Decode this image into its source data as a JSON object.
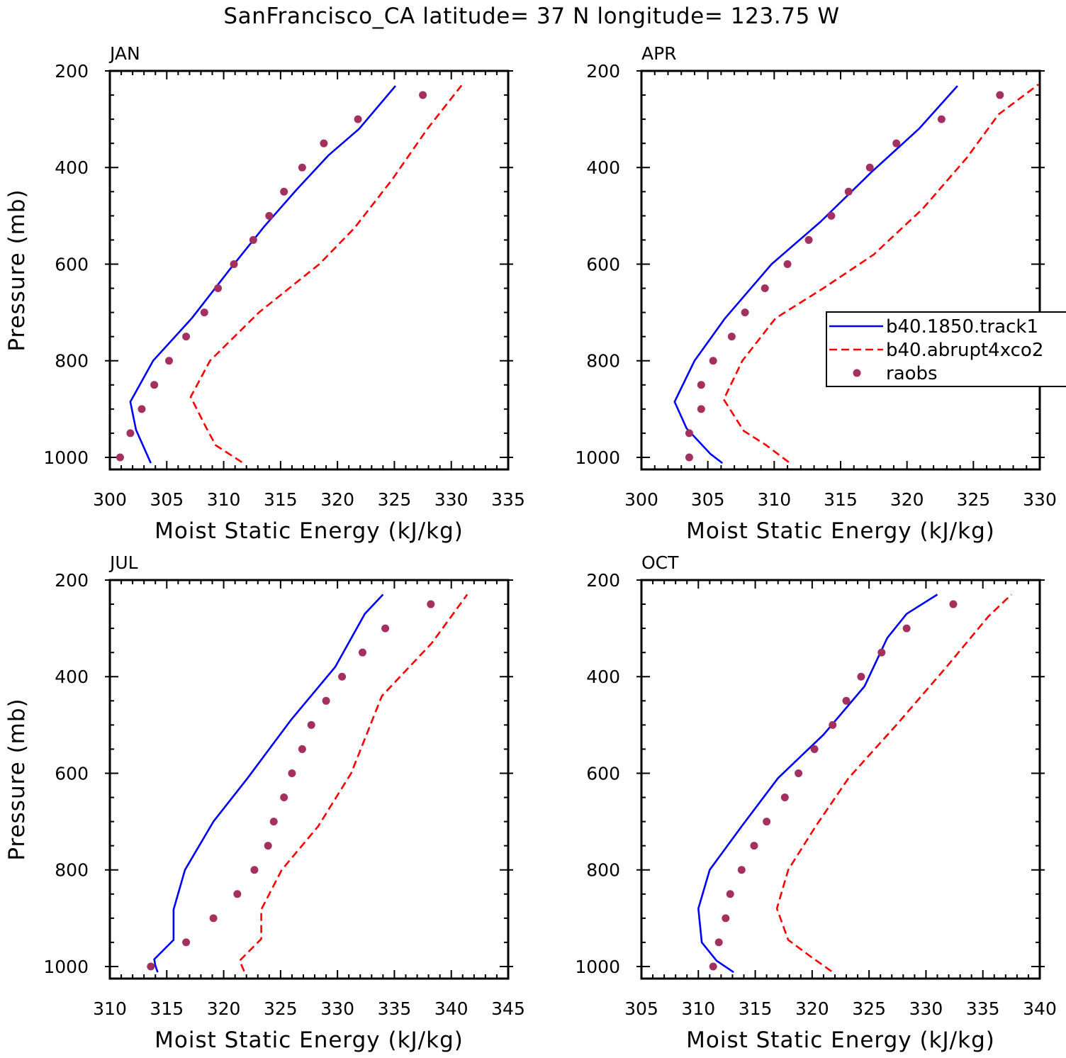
{
  "title": "SanFrancisco_CA  latitude= 37 N longitude= 123.75 W",
  "legend": {
    "placement": "right-middle of APR panel",
    "entries": [
      {
        "label": "b40.1850.track1",
        "style": "solid",
        "color": "#0000ff"
      },
      {
        "label": "b40.abrupt4xco2",
        "style": "dashed",
        "color": "#ff0000"
      },
      {
        "label": "raobs",
        "style": "dot",
        "color": "#a3305f"
      }
    ]
  },
  "colors": {
    "model_control": "#0000ff",
    "model_4xco2": "#ff0000",
    "obs": "#a3305f"
  },
  "chart_data": [
    {
      "type": "line",
      "panel": "JAN",
      "xlabel": "Moist Static Energy (kJ/kg)",
      "ylabel": "Pressure (mb)",
      "xlim": [
        300,
        335
      ],
      "ylim": [
        1025,
        200
      ],
      "xticks": [
        300,
        305,
        310,
        315,
        320,
        325,
        330,
        335
      ],
      "yticks": [
        200,
        400,
        600,
        800,
        1000
      ],
      "series": [
        {
          "name": "b40.1850.track1",
          "style": "solid",
          "x": [
            303.6,
            302.3,
            301.8,
            303.8,
            307.2,
            310.5,
            313.6,
            316.4,
            319.2,
            321.9,
            325.1
          ],
          "y": [
            1012,
            943,
            885,
            800,
            712,
            612,
            521,
            446,
            375,
            320,
            231
          ]
        },
        {
          "name": "b40.abrupt4xco2",
          "style": "dashed",
          "x": [
            311.6,
            309.3,
            308.5,
            307.1,
            308.8,
            313.1,
            318.4,
            321.5,
            324.8,
            327.9,
            330.9
          ],
          "y": [
            1010,
            975,
            940,
            875,
            800,
            700,
            600,
            525,
            425,
            320,
            230
          ]
        },
        {
          "name": "raobs",
          "style": "dot",
          "x": [
            300.9,
            301.8,
            302.8,
            303.9,
            305.2,
            306.7,
            308.3,
            309.5,
            310.9,
            312.6,
            314.0,
            315.3,
            316.9,
            318.8,
            321.8,
            327.5
          ],
          "y": [
            1000,
            950,
            900,
            850,
            800,
            750,
            700,
            650,
            600,
            550,
            500,
            450,
            400,
            350,
            300,
            250
          ]
        }
      ]
    },
    {
      "type": "line",
      "panel": "APR",
      "xlabel": "Moist Static Energy (kJ/kg)",
      "ylabel": "",
      "xlim": [
        300,
        330
      ],
      "ylim": [
        1025,
        200
      ],
      "xticks": [
        300,
        305,
        310,
        315,
        320,
        325,
        330
      ],
      "yticks": [
        200,
        400,
        600,
        800,
        1000
      ],
      "series": [
        {
          "name": "b40.1850.track1",
          "style": "solid",
          "x": [
            306.1,
            305.2,
            303.4,
            302.5,
            304.0,
            306.3,
            309.8,
            313.5,
            317.3,
            320.9,
            323.8
          ],
          "y": [
            1012,
            993,
            940,
            885,
            800,
            712,
            600,
            512,
            410,
            320,
            231
          ]
        },
        {
          "name": "b40.abrupt4xco2",
          "style": "dashed",
          "x": [
            311.1,
            309.4,
            307.7,
            306.2,
            307.6,
            310.1,
            313.7,
            317.5,
            321.2,
            324.5,
            326.9,
            329.9
          ],
          "y": [
            1010,
            975,
            945,
            880,
            800,
            712,
            650,
            580,
            485,
            380,
            290,
            228
          ]
        },
        {
          "name": "raobs",
          "style": "dot",
          "x": [
            303.6,
            303.6,
            304.5,
            304.5,
            305.4,
            306.8,
            307.8,
            309.3,
            311.0,
            312.6,
            314.3,
            315.6,
            317.2,
            319.2,
            322.6,
            327.0
          ],
          "y": [
            1000,
            950,
            900,
            850,
            800,
            750,
            700,
            650,
            600,
            550,
            500,
            450,
            400,
            350,
            300,
            250
          ]
        }
      ]
    },
    {
      "type": "line",
      "panel": "JUL",
      "xlabel": "Moist Static Energy (kJ/kg)",
      "ylabel": "Pressure (mb)",
      "xlim": [
        310,
        345
      ],
      "ylim": [
        1025,
        200
      ],
      "xticks": [
        310,
        315,
        320,
        325,
        330,
        335,
        340,
        345
      ],
      "yticks": [
        200,
        400,
        600,
        800,
        1000
      ],
      "series": [
        {
          "name": "b40.1850.track1",
          "style": "solid",
          "x": [
            314.2,
            314.0,
            313.9,
            315.6,
            315.6,
            316.6,
            319.1,
            322.1,
            325.9,
            329.8,
            332.4,
            334.0
          ],
          "y": [
            1012,
            998,
            985,
            945,
            882,
            800,
            700,
            610,
            490,
            380,
            270,
            230
          ]
        },
        {
          "name": "b40.abrupt4xco2",
          "style": "dashed",
          "x": [
            321.8,
            321.4,
            323.3,
            323.3,
            325.1,
            328.3,
            331.2,
            333.9,
            338.3,
            341.4
          ],
          "y": [
            1010,
            988,
            943,
            882,
            800,
            710,
            600,
            440,
            330,
            230
          ]
        },
        {
          "name": "raobs",
          "style": "dot",
          "x": [
            313.6,
            316.7,
            319.1,
            321.2,
            322.7,
            323.9,
            324.4,
            325.3,
            326.0,
            326.9,
            327.7,
            329.0,
            330.4,
            332.2,
            334.2,
            338.2
          ],
          "y": [
            1000,
            950,
            900,
            850,
            800,
            750,
            700,
            650,
            600,
            550,
            500,
            450,
            400,
            350,
            300,
            250
          ]
        }
      ]
    },
    {
      "type": "line",
      "panel": "OCT",
      "xlabel": "Moist Static Energy (kJ/kg)",
      "ylabel": "",
      "xlim": [
        305,
        340
      ],
      "ylim": [
        1025,
        200
      ],
      "xticks": [
        305,
        310,
        315,
        320,
        325,
        330,
        335,
        340
      ],
      "yticks": [
        200,
        400,
        600,
        800,
        1000
      ],
      "series": [
        {
          "name": "b40.1850.track1",
          "style": "solid",
          "x": [
            313.1,
            311.6,
            310.3,
            310.0,
            311.0,
            313.8,
            317.0,
            321.0,
            324.6,
            326.6,
            328.3,
            331.0
          ],
          "y": [
            1012,
            988,
            950,
            880,
            800,
            710,
            610,
            520,
            420,
            320,
            270,
            230
          ]
        },
        {
          "name": "b40.abrupt4xco2",
          "style": "dashed",
          "x": [
            321.7,
            319.9,
            317.9,
            316.9,
            317.9,
            320.3,
            323.2,
            327.4,
            331.8,
            335.5,
            337.5
          ],
          "y": [
            1010,
            980,
            945,
            880,
            800,
            710,
            610,
            500,
            380,
            275,
            230
          ]
        },
        {
          "name": "raobs",
          "style": "dot",
          "x": [
            311.3,
            311.8,
            312.4,
            312.8,
            313.8,
            314.9,
            316.0,
            317.6,
            318.8,
            320.2,
            321.8,
            323.0,
            324.3,
            326.1,
            328.3,
            332.4
          ],
          "y": [
            1000,
            950,
            900,
            850,
            800,
            750,
            700,
            650,
            600,
            550,
            500,
            450,
            400,
            350,
            300,
            250
          ]
        }
      ]
    }
  ]
}
